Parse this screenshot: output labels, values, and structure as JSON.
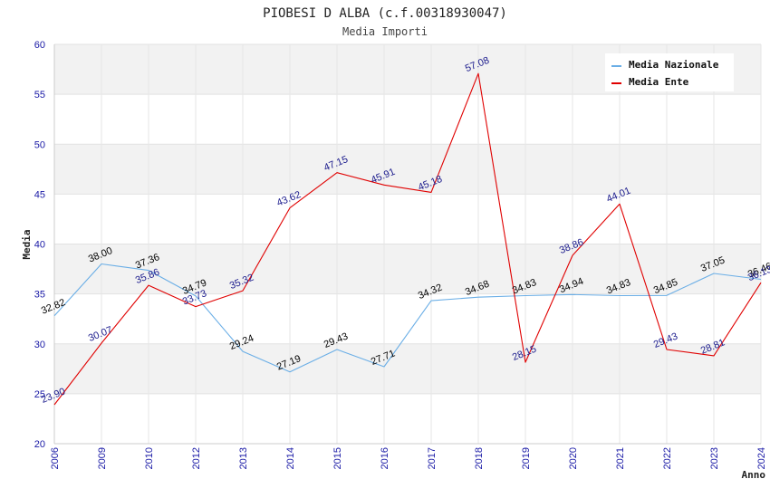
{
  "chart_data": {
    "type": "line",
    "title": "PIOBESI D ALBA (c.f.00318930047)",
    "subtitle": "Media Importi",
    "xlabel": "Anno",
    "ylabel": "Media",
    "ylim": [
      20,
      60
    ],
    "yticks": [
      "20",
      "25",
      "30",
      "35",
      "40",
      "45",
      "50",
      "55",
      "60"
    ],
    "categories": [
      "2006",
      "2009",
      "2010",
      "2012",
      "2013",
      "2014",
      "2015",
      "2016",
      "2017",
      "2018",
      "2019",
      "2020",
      "2021",
      "2022",
      "2023",
      "2024"
    ],
    "legend_position": "top-right",
    "grid": true,
    "series": [
      {
        "name": "Media Nazionale",
        "color": "#6aaee6",
        "label_color": "#000000",
        "values": [
          32.82,
          38.0,
          37.36,
          34.79,
          29.24,
          27.19,
          29.43,
          27.71,
          34.32,
          34.68,
          34.83,
          34.94,
          34.83,
          34.85,
          37.05,
          36.46
        ],
        "labels": [
          "32.82",
          "38.00",
          "37.36",
          "34.79",
          "29.24",
          "27.19",
          "29.43",
          "27.71",
          "34.32",
          "34.68",
          "34.83",
          "34.94",
          "34.83",
          "34.85",
          "37.05",
          "36.46"
        ]
      },
      {
        "name": "Media Ente",
        "color": "#e00000",
        "label_color": "#1a1a8c",
        "values": [
          23.9,
          30.07,
          35.86,
          33.73,
          35.32,
          43.62,
          47.15,
          45.91,
          45.18,
          57.08,
          28.15,
          38.86,
          44.01,
          29.43,
          28.81,
          36.13
        ],
        "labels": [
          "23.90",
          "30.07",
          "35.86",
          "33.73",
          "35.32",
          "43.62",
          "47.15",
          "45.91",
          "45.18",
          "57.08",
          "28.15",
          "38.86",
          "44.01",
          "29.43",
          "28.81",
          "36.13"
        ]
      }
    ]
  }
}
